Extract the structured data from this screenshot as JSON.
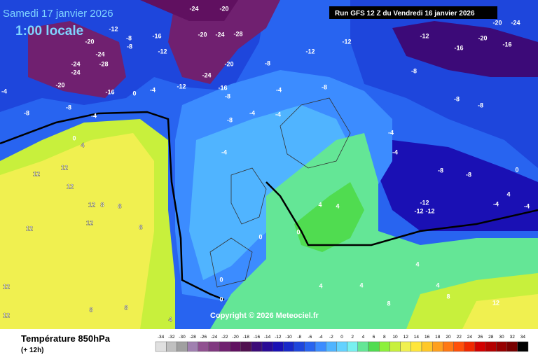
{
  "header": {
    "date": "Samedi 17 janvier 2026",
    "time": "1:00 locale",
    "run": "Run GFS 12 Z du Vendredi 16 janvier 2026"
  },
  "map": {
    "labels": [
      -20,
      -24,
      -24,
      -28,
      -24,
      -20,
      -16,
      -12,
      -8,
      -8,
      -12,
      -16,
      -20,
      -24,
      -28,
      -20,
      -24,
      -24,
      -20,
      -16,
      -12,
      -8,
      -8,
      -8,
      -4,
      -4,
      0,
      0,
      4,
      -8,
      -8,
      -4,
      -4,
      -4,
      -4,
      -12,
      -12,
      -8,
      -12,
      -16,
      -20,
      -16,
      -8,
      -8,
      -8,
      -4,
      -4,
      -8,
      -8,
      -12,
      -12,
      -12,
      -4,
      -4,
      0,
      4,
      12,
      12,
      12,
      8,
      8,
      12,
      12,
      12,
      8,
      4,
      4,
      0,
      0,
      0,
      0,
      4,
      4,
      4,
      4,
      8,
      8,
      12,
      8,
      8,
      4,
      12,
      12,
      -20,
      -24,
      -4
    ],
    "copyright": "Copyright © 2026 Meteociel.fr"
  },
  "legend": {
    "title": "Température 850hPa",
    "subtitle": "(+ 12h)",
    "scale": [
      -34,
      -32,
      -30,
      -28,
      -26,
      -24,
      -22,
      -20,
      -18,
      -16,
      -14,
      -12,
      -10,
      -8,
      -6,
      -4,
      -2,
      0,
      2,
      4,
      6,
      8,
      10,
      12,
      14,
      16,
      18,
      20,
      22,
      24,
      26,
      28,
      30,
      32,
      34
    ],
    "colors": [
      "#e0e0e0",
      "#c0c0c0",
      "#a0a0a0",
      "#a080b0",
      "#905090",
      "#803880",
      "#702070",
      "#601060",
      "#501050",
      "#3c0a78",
      "#2a0a96",
      "#1a10b4",
      "#1828c8",
      "#1e46dc",
      "#2864f0",
      "#3c8cff",
      "#50b4ff",
      "#64d2ff",
      "#78f0f0",
      "#64e696",
      "#50dc50",
      "#8cf03c",
      "#c8f03c",
      "#f0f050",
      "#ffe63c",
      "#ffc828",
      "#ffa01e",
      "#ff7814",
      "#ff500a",
      "#f02800",
      "#d20000",
      "#b40000",
      "#960000",
      "#780000",
      "#000000"
    ]
  }
}
